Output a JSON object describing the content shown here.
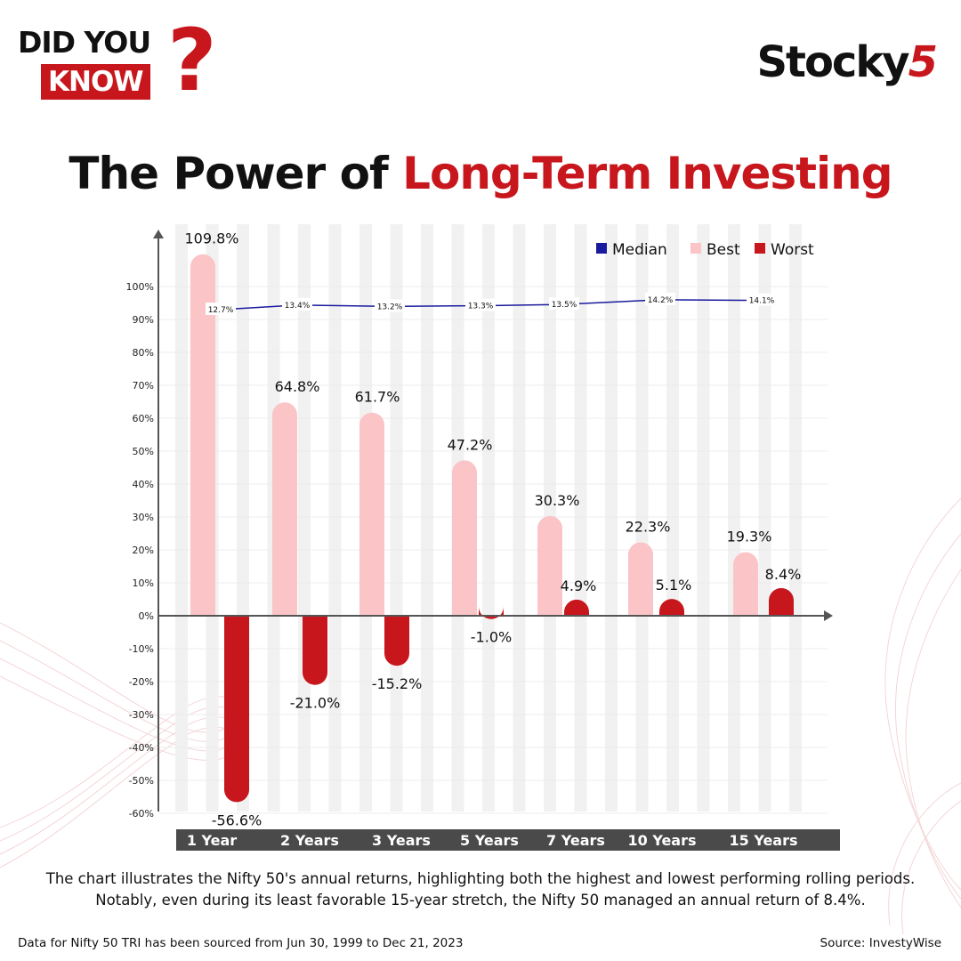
{
  "badge": {
    "line1": "DID YOU",
    "line2": "KNOW",
    "mark": "?"
  },
  "logo": {
    "word": "Stocky",
    "num": "5"
  },
  "title": {
    "plain": "The Power of ",
    "highlight": "Long-Term Investing"
  },
  "colors": {
    "best": "#fbc4c6",
    "worst": "#c8161d",
    "median": "#1a1a9e",
    "axis": "#555555",
    "accent": "#c8161d"
  },
  "chart_data": {
    "type": "bar",
    "categories": [
      "1 Year",
      "2 Years",
      "3 Years",
      "5 Years",
      "7 Years",
      "10 Years",
      "15 Years"
    ],
    "series": [
      {
        "name": "Best",
        "values": [
          109.8,
          64.8,
          61.7,
          47.2,
          30.3,
          22.3,
          19.3
        ],
        "labels": [
          "109.8%",
          "64.8%",
          "61.7%",
          "47.2%",
          "30.3%",
          "22.3%",
          "19.3%"
        ]
      },
      {
        "name": "Worst",
        "values": [
          -56.6,
          -21.0,
          -15.2,
          -1.0,
          4.9,
          5.1,
          8.4
        ],
        "labels": [
          "-56.6%",
          "-21.0%",
          "-15.2%",
          "-1.0%",
          "4.9%",
          "5.1%",
          "8.4%"
        ]
      },
      {
        "name": "Median",
        "type": "line",
        "values": [
          12.7,
          13.4,
          13.2,
          13.3,
          13.5,
          14.2,
          14.1
        ],
        "labels": [
          "12.7%",
          "13.4%",
          "13.2%",
          "13.3%",
          "13.5%",
          "14.2%",
          "14.1%"
        ]
      }
    ],
    "y_ticks": [
      "100%",
      "90%",
      "80%",
      "70%",
      "60%",
      "50%",
      "40%",
      "30%",
      "20%",
      "10%",
      "0%",
      "-10%",
      "-20%",
      "-30%",
      "-40%",
      "-50%",
      "-60%"
    ],
    "legend": [
      "Median",
      "Best",
      "Worst"
    ],
    "legend_position": "top-right",
    "grid": true
  },
  "caption": "The chart illustrates the Nifty 50's annual returns, highlighting both the highest and lowest performing rolling periods. Notably, even during its least favorable 15-year stretch, the Nifty 50 managed an annual return of 8.4%.",
  "footer": {
    "left": "Data for Nifty 50 TRI has been sourced from Jun 30, 1999 to Dec 21, 2023",
    "right": "Source: InvestyWise"
  }
}
